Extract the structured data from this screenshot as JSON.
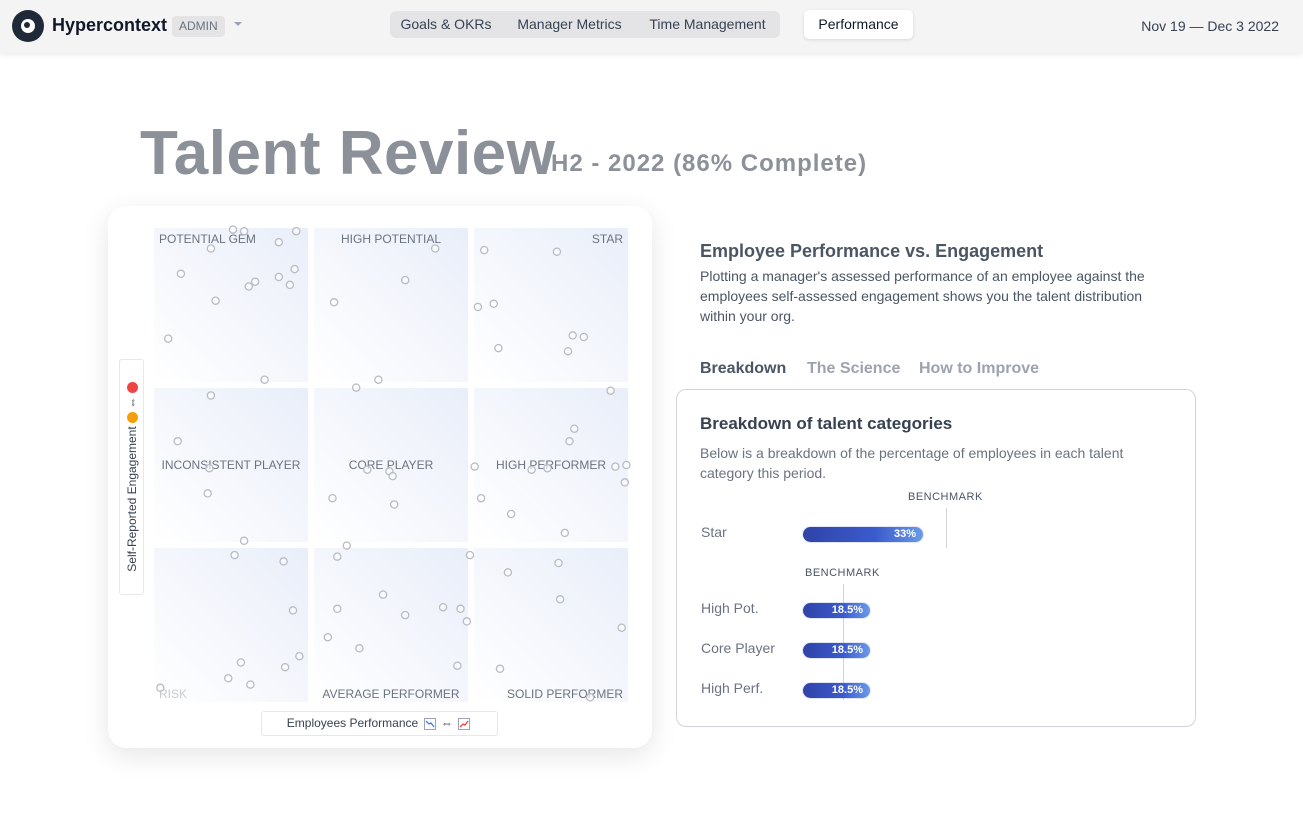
{
  "header": {
    "brand": "Hypercontext",
    "role_badge": "ADMIN",
    "nav_tabs": [
      {
        "label": "Goals & OKRs"
      },
      {
        "label": "Manager Metrics"
      },
      {
        "label": "Time Management"
      }
    ],
    "active_tab": "Performance",
    "date_range": "Nov 19 — Dec 3 2022"
  },
  "page": {
    "title": "Talent Review",
    "subtitle": "H2 - 2022 (86% Complete)"
  },
  "chart": {
    "y_axis_label": "Self-Reported Engagement",
    "y_axis_arrow": "⇔",
    "x_axis_label": "Employees Performance",
    "x_axis_arrow": "⇔",
    "quadrants": [
      {
        "label": "POTENTIAL GEM"
      },
      {
        "label": "HIGH POTENTIAL"
      },
      {
        "label": "STAR"
      },
      {
        "label": "INCONSISTENT PLAYER"
      },
      {
        "label": "CORE PLAYER"
      },
      {
        "label": "HIGH PERFORMER"
      },
      {
        "label": "RISK"
      },
      {
        "label": "AVERAGE PERFORMER"
      },
      {
        "label": "SOLID PERFORMER"
      }
    ]
  },
  "chart_data": {
    "type": "scatter",
    "title": "",
    "xlabel": "Employees Performance",
    "ylabel": "Self-Reported Engagement",
    "xlim": [
      0,
      3
    ],
    "ylim": [
      0,
      3
    ],
    "grid": "3x3",
    "points": [
      [
        0.5,
        2.99
      ],
      [
        0.57,
        2.98
      ],
      [
        0.36,
        2.87
      ],
      [
        0.9,
        2.98
      ],
      [
        0.79,
        2.91
      ],
      [
        1.78,
        2.87
      ],
      [
        2.09,
        2.86
      ],
      [
        2.55,
        2.85
      ],
      [
        0.17,
        2.71
      ],
      [
        0.89,
        2.74
      ],
      [
        0.64,
        2.66
      ],
      [
        0.6,
        2.63
      ],
      [
        0.86,
        2.64
      ],
      [
        0.79,
        2.69
      ],
      [
        1.59,
        2.67
      ],
      [
        0.39,
        2.54
      ],
      [
        1.14,
        2.53
      ],
      [
        2.15,
        2.52
      ],
      [
        2.05,
        2.5
      ],
      [
        0.09,
        2.3
      ],
      [
        2.65,
        2.32
      ],
      [
        2.72,
        2.31
      ],
      [
        2.18,
        2.24
      ],
      [
        2.62,
        2.22
      ],
      [
        0.7,
        2.04
      ],
      [
        1.42,
        2.04
      ],
      [
        2.89,
        1.97
      ],
      [
        1.28,
        1.99
      ],
      [
        0.36,
        1.94
      ],
      [
        2.66,
        1.73
      ],
      [
        2.63,
        1.65
      ],
      [
        0.15,
        1.65
      ],
      [
        2.99,
        1.5
      ],
      [
        2.92,
        1.49
      ],
      [
        0.35,
        1.48
      ],
      [
        1.35,
        1.47
      ],
      [
        1.49,
        1.46
      ],
      [
        2.03,
        1.49
      ],
      [
        2.39,
        1.47
      ],
      [
        2.49,
        1.48
      ],
      [
        1.51,
        1.43
      ],
      [
        2.98,
        1.39
      ],
      [
        0.34,
        1.32
      ],
      [
        1.13,
        1.29
      ],
      [
        2.07,
        1.29
      ],
      [
        1.52,
        1.25
      ],
      [
        2.26,
        1.19
      ],
      [
        2.6,
        1.07
      ],
      [
        0.57,
        1.02
      ],
      [
        1.22,
        0.99
      ],
      [
        0.51,
        0.93
      ],
      [
        1.16,
        0.92
      ],
      [
        2.0,
        0.93
      ],
      [
        0.82,
        0.89
      ],
      [
        2.24,
        0.82
      ],
      [
        2.56,
        0.88
      ],
      [
        2.57,
        0.65
      ],
      [
        1.45,
        0.68
      ],
      [
        0.88,
        0.58
      ],
      [
        1.16,
        0.59
      ],
      [
        1.83,
        0.6
      ],
      [
        1.94,
        0.59
      ],
      [
        1.59,
        0.55
      ],
      [
        1.98,
        0.51
      ],
      [
        2.96,
        0.47
      ],
      [
        1.1,
        0.41
      ],
      [
        1.3,
        0.34
      ],
      [
        0.92,
        0.29
      ],
      [
        0.55,
        0.25
      ],
      [
        0.83,
        0.22
      ],
      [
        1.92,
        0.23
      ],
      [
        2.19,
        0.21
      ],
      [
        0.47,
        0.15
      ],
      [
        0.61,
        0.11
      ],
      [
        0.04,
        0.09
      ],
      [
        2.76,
        0.03
      ]
    ]
  },
  "panel": {
    "title": "Employee Performance vs. Engagement",
    "description": "Plotting a manager's assessed performance of an employee against the employees self-assessed engagement shows you the talent distribution within your org.",
    "tabs": [
      {
        "label": "Breakdown",
        "active": true
      },
      {
        "label": "The Science",
        "active": false
      },
      {
        "label": "How to Improve",
        "active": false
      }
    ],
    "breakdown": {
      "title": "Breakdown of talent categories",
      "description": "Below is a breakdown of the percentage of employees in each talent category this period.",
      "benchmark_label": "BENCHMARK",
      "rows": [
        {
          "label": "Star",
          "value": 33,
          "value_label": "33%"
        },
        {
          "label": "High Pot.",
          "value": 18.5,
          "value_label": "18.5%"
        },
        {
          "label": "Core Player",
          "value": 18.5,
          "value_label": "18.5%"
        },
        {
          "label": "High Perf.",
          "value": 18.5,
          "value_label": "18.5%"
        }
      ]
    }
  },
  "colors": {
    "bar_start": "#3043a8",
    "bar_end": "#6b9ae6",
    "title_gray": "#8b9099"
  }
}
